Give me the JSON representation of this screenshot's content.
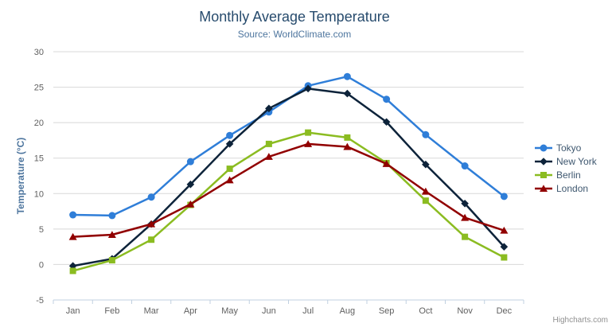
{
  "chart": {
    "title": "Monthly Average Temperature",
    "subtitle": "Source: WorldClimate.com",
    "y_axis_title": "Temperature (°C)",
    "credits": "Highcharts.com",
    "context_menu_icon": "hamburger-icon"
  },
  "chart_data": {
    "type": "line",
    "title": "Monthly Average Temperature",
    "subtitle": "Source: WorldClimate.com",
    "xlabel": "",
    "ylabel": "Temperature (°C)",
    "categories": [
      "Jan",
      "Feb",
      "Mar",
      "Apr",
      "May",
      "Jun",
      "Jul",
      "Aug",
      "Sep",
      "Oct",
      "Nov",
      "Dec"
    ],
    "series": [
      {
        "name": "Tokyo",
        "marker": "circle",
        "color": "#2f7ed8",
        "values": [
          7.0,
          6.9,
          9.5,
          14.5,
          18.2,
          21.5,
          25.2,
          26.5,
          23.3,
          18.3,
          13.9,
          9.6
        ]
      },
      {
        "name": "New York",
        "marker": "diamond",
        "color": "#0d233a",
        "values": [
          -0.2,
          0.8,
          5.7,
          11.3,
          17.0,
          22.0,
          24.8,
          24.1,
          20.1,
          14.1,
          8.6,
          2.5
        ]
      },
      {
        "name": "Berlin",
        "marker": "square",
        "color": "#8bbc21",
        "values": [
          -0.9,
          0.6,
          3.5,
          8.4,
          13.5,
          17.0,
          18.6,
          17.9,
          14.3,
          9.0,
          3.9,
          1.0
        ]
      },
      {
        "name": "London",
        "marker": "triangle",
        "color": "#910000",
        "values": [
          3.9,
          4.2,
          5.7,
          8.5,
          11.9,
          15.2,
          17.0,
          16.6,
          14.2,
          10.3,
          6.6,
          4.8
        ]
      }
    ],
    "ylim": [
      -5,
      30
    ],
    "yticks": [
      -5,
      0,
      5,
      10,
      15,
      20,
      25,
      30
    ],
    "grid": true,
    "legend_position": "right",
    "colors": {
      "title_text": "#274b6d",
      "subtitle_text": "#4d759e",
      "axis_label_text": "#606060",
      "gridline": "#d8d8d8",
      "axis_line": "#c0d0e0",
      "legend_text": "#3e576f"
    }
  }
}
